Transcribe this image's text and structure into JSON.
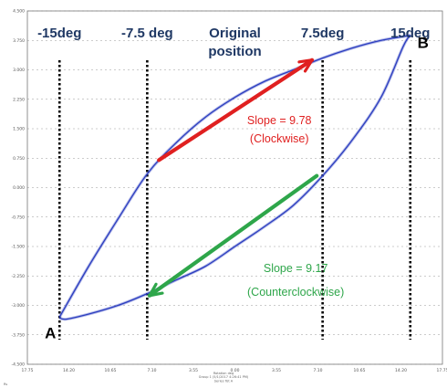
{
  "chart_data": {
    "type": "line",
    "title": "",
    "xlabel": "",
    "ylabel": "",
    "grid": true,
    "x_tick_labels": [
      "17.75",
      "14.20",
      "10.65",
      "7.10",
      "3.55",
      "0.00",
      "3.55",
      "7.10",
      "10.65",
      "14.20",
      "17.75"
    ],
    "y_tick_labels": [
      "4.500",
      "3.750",
      "3.000",
      "2.250",
      "1.500",
      "0.750",
      "0.000",
      "-0.750",
      "-1.500",
      "-2.250",
      "-3.000",
      "-3.750",
      "-4.500"
    ],
    "angle_labels": [
      {
        "text": "-15deg",
        "x": -15
      },
      {
        "text": "-7.5 deg",
        "x": -7.5
      },
      {
        "text": "Original",
        "x": 0
      },
      {
        "text": "position",
        "x": 0
      },
      {
        "text": "7.5deg",
        "x": 7.5
      },
      {
        "text": "15deg",
        "x": 15
      }
    ],
    "vertical_markers": [
      -15,
      -7.5,
      7.5,
      15
    ],
    "series": [
      {
        "x": [
          -15,
          -12.5,
          -10,
          -7.5,
          -5,
          -2.5,
          0,
          2.5,
          5,
          7.5,
          10,
          12.5,
          14.4,
          15
        ],
        "y": [
          -3.3,
          -2.0,
          -0.8,
          0.35,
          1.15,
          1.8,
          2.3,
          2.7,
          3.0,
          3.3,
          3.55,
          3.75,
          3.85,
          3.88
        ]
      },
      {
        "x": [
          15,
          14.4,
          12.5,
          10,
          7.5,
          5,
          2.5,
          0,
          -2.5,
          -5,
          -7.5,
          -10,
          -12.5,
          -14.4,
          -15
        ],
        "y": [
          3.88,
          3.6,
          2.3,
          1.2,
          0.3,
          -0.45,
          -1.0,
          -1.5,
          -2.0,
          -2.35,
          -2.7,
          -3.0,
          -3.22,
          -3.35,
          -3.32
        ]
      }
    ],
    "arrows": [
      {
        "color": "#e02020",
        "from": [
          -6.5,
          0.7
        ],
        "to": [
          6.6,
          3.25
        ]
      },
      {
        "color": "#2ea64a",
        "from": [
          7.0,
          0.3
        ],
        "to": [
          -7.3,
          -2.75
        ]
      }
    ],
    "annotations": [
      {
        "text": "Slope = 9.78",
        "color": "#e02020",
        "x": 3.8,
        "y": 1.62
      },
      {
        "text": "(Clockwise)",
        "color": "#e02020",
        "x": 3.8,
        "y": 1.15
      },
      {
        "text": "Slope = 9.17",
        "color": "#2ea64a",
        "x": 5.2,
        "y": -2.15
      },
      {
        "text": "(Counterclockwise)",
        "color": "#2ea64a",
        "x": 5.2,
        "y": -2.75
      }
    ],
    "points": [
      {
        "label": "A",
        "x": -15,
        "y": -3.32
      },
      {
        "label": "B",
        "x": 15,
        "y": 3.88
      }
    ],
    "footer_lines": [
      "Rotation deg",
      "Group 1 (5/1/2017 4:26:41 PM)",
      "Series Tot A"
    ],
    "bottom_left_text": "Rs",
    "colors": {
      "curve": "#2b3dbf",
      "grid": "#9a9a9a",
      "marker": "#000000",
      "angle_label": "#1f3864"
    }
  }
}
